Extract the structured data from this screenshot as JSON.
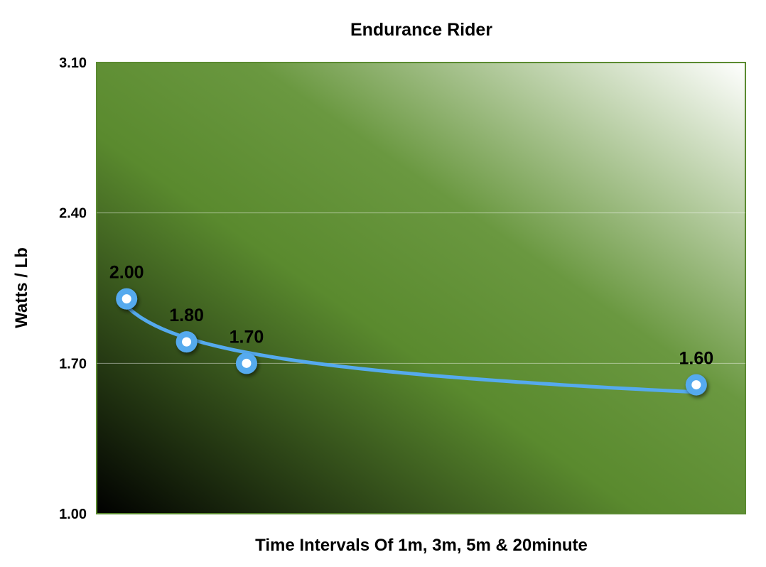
{
  "chart_data": {
    "type": "line",
    "title": "Endurance Rider",
    "xlabel": "Time Intervals Of 1m, 3m, 5m & 20minute",
    "ylabel": "Watts / Lb",
    "x": [
      1,
      3,
      5,
      20
    ],
    "xlim": [
      0,
      21.64
    ],
    "ylim": [
      1.0,
      3.1
    ],
    "yticks": [
      "1.00",
      "1.70",
      "2.40",
      "3.10"
    ],
    "grid": true,
    "legend": "none",
    "series": [
      {
        "values": [
          2.0,
          1.8,
          1.7,
          1.6
        ],
        "labels": [
          "2.00",
          "1.80",
          "1.70",
          "1.60"
        ]
      }
    ],
    "trendline": true,
    "colors": {
      "line": "#55aaee",
      "marker_fill": "#ffffff",
      "plot_border": "#5a8a30",
      "bg_dark": "#000000",
      "bg_mid": "#5a8a2e",
      "bg_light": "#ffffff"
    }
  }
}
